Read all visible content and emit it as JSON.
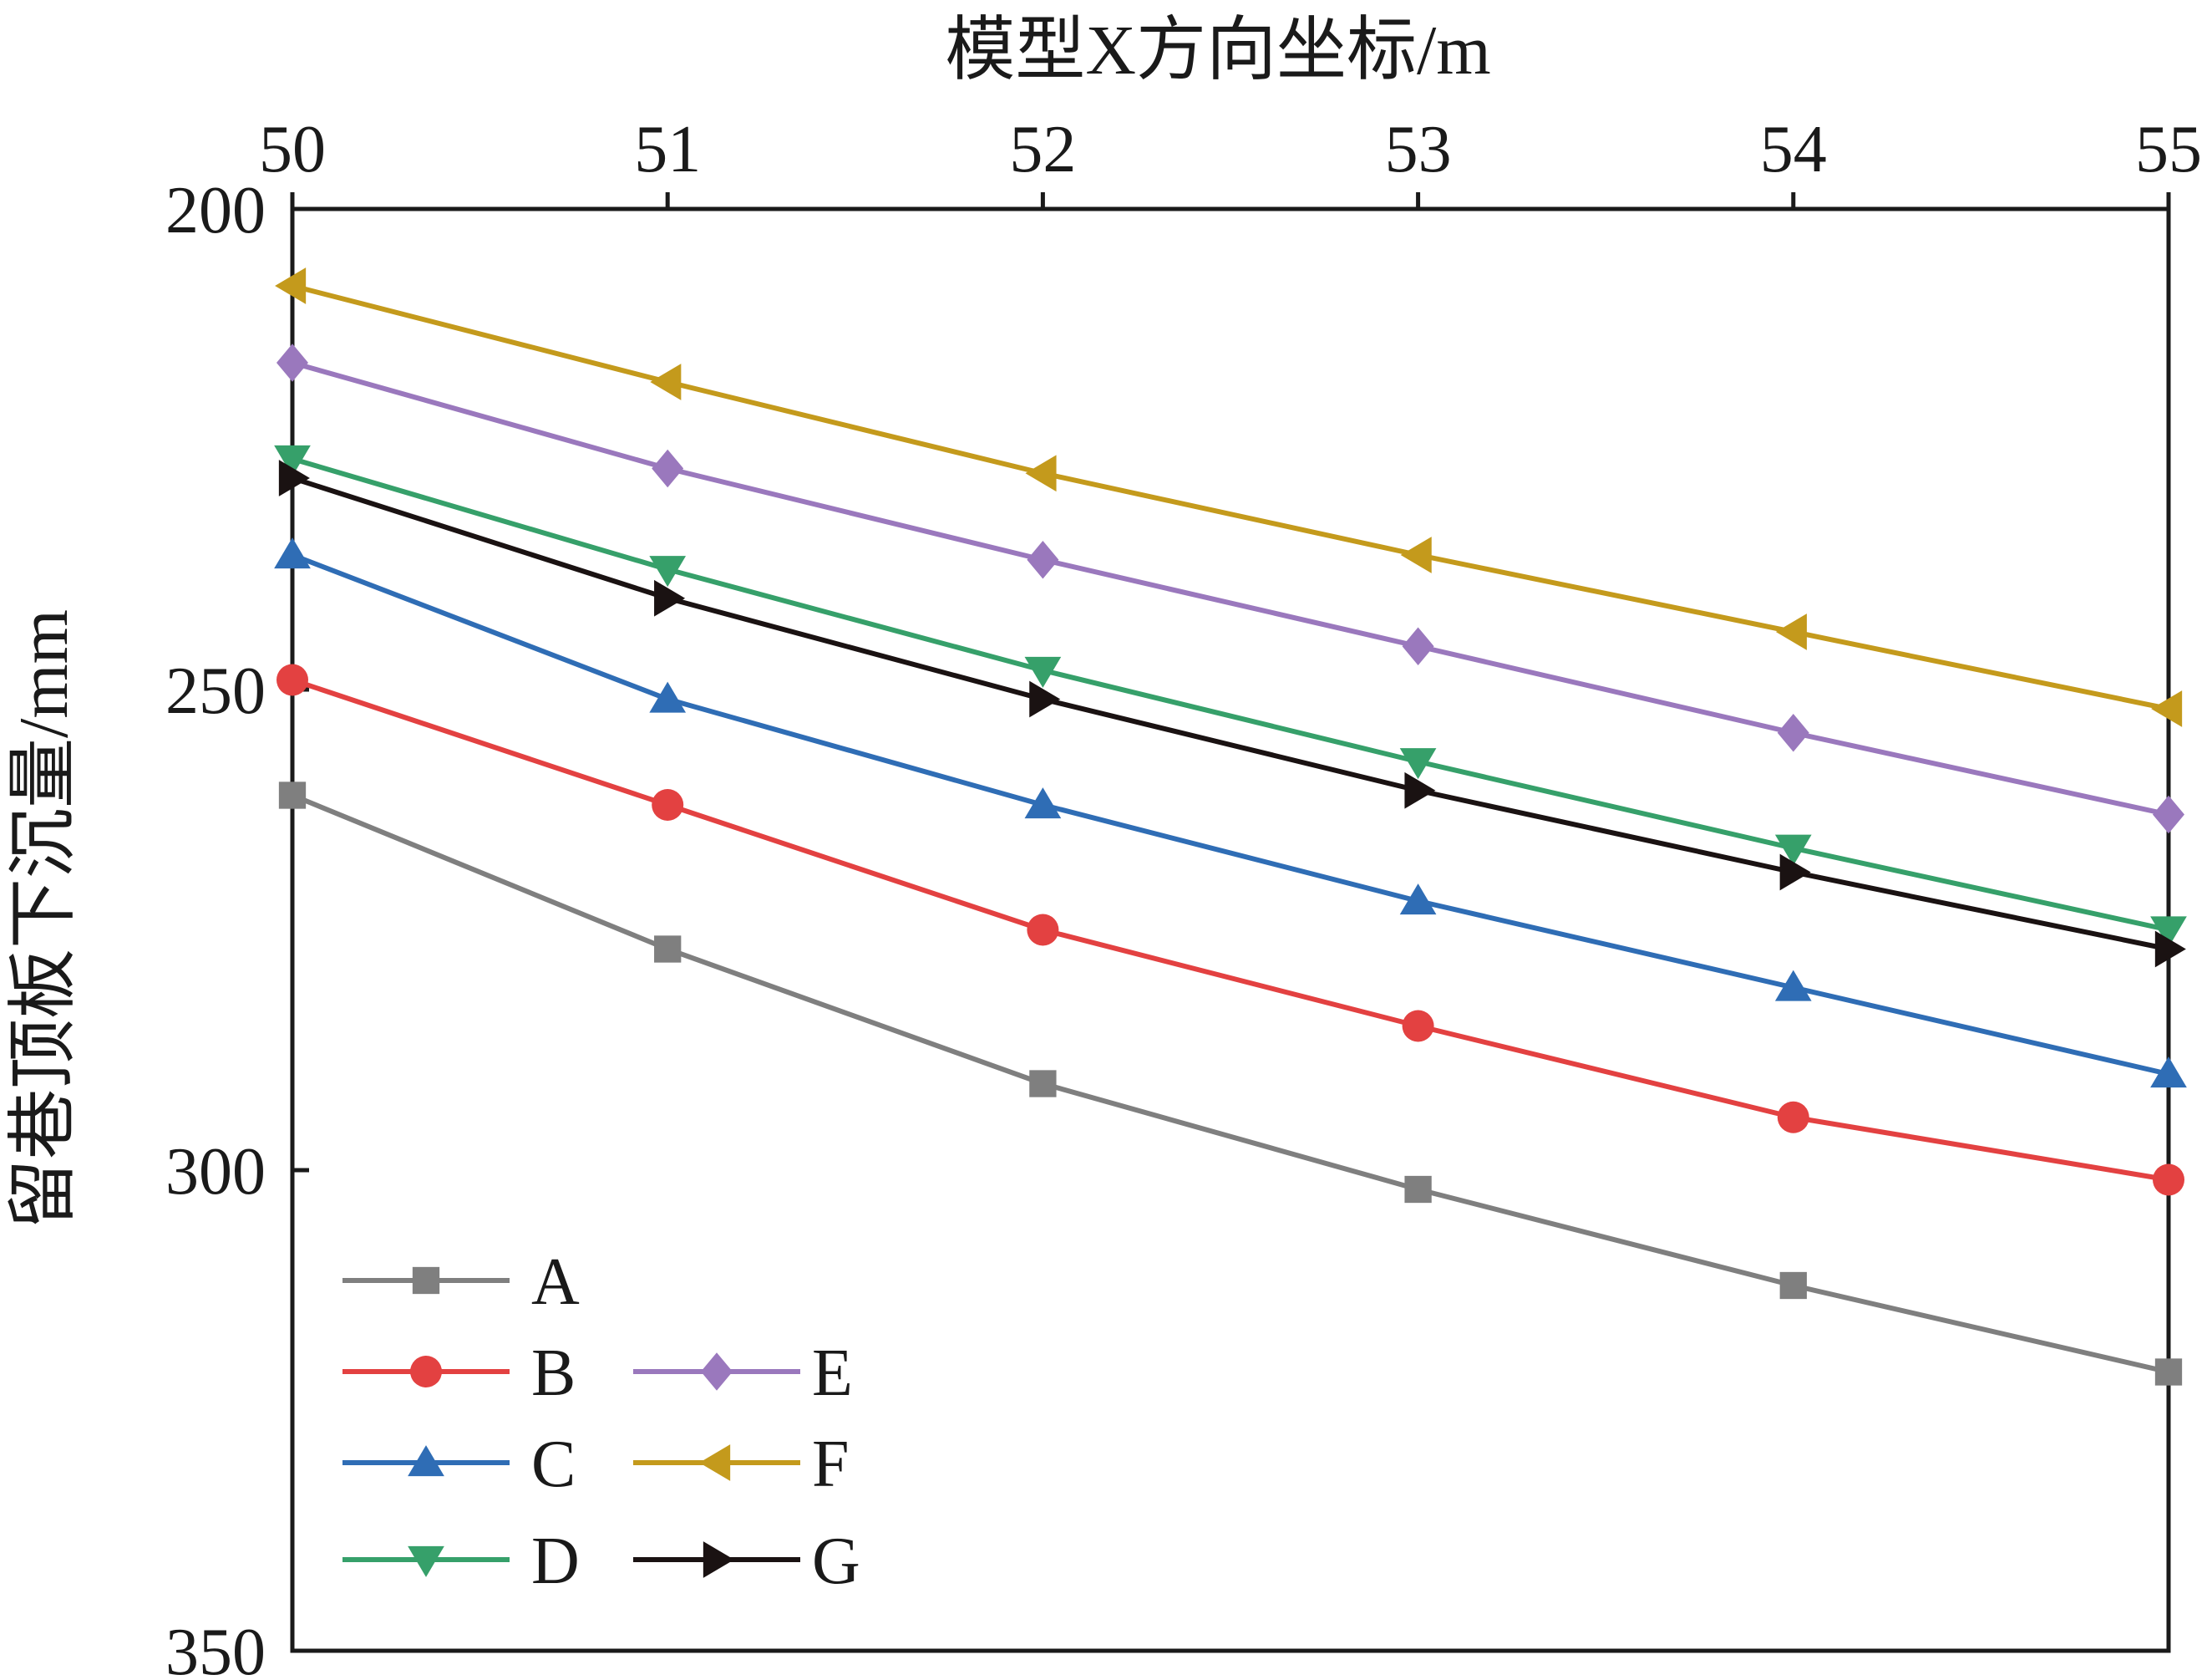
{
  "chart_data": {
    "type": "line",
    "xlabel": "模型X方向坐标/m",
    "ylabel": "留巷顶板下沉量/mm",
    "x_axis_position": "top",
    "y_axis_inverted": true,
    "x": [
      50,
      51,
      52,
      53,
      54,
      55
    ],
    "xlim": [
      50,
      55
    ],
    "ylim": [
      200,
      350
    ],
    "x_ticks": [
      "50",
      "51",
      "52",
      "53",
      "54",
      "55"
    ],
    "y_ticks": [
      "200",
      "250",
      "300",
      "350"
    ],
    "y_tick_values": [
      200,
      250,
      300,
      350
    ],
    "grid": false,
    "legend_position": "bottom-left",
    "series": [
      {
        "name": "A",
        "color": "#7f7f7f",
        "marker": "square",
        "values": [
          261,
          277,
          291,
          302,
          312,
          321
        ]
      },
      {
        "name": "B",
        "color": "#e34141",
        "marker": "circle",
        "values": [
          249,
          262,
          275,
          285,
          294.5,
          301
        ]
      },
      {
        "name": "C",
        "color": "#2f6db5",
        "marker": "triangle-up",
        "values": [
          236,
          251,
          262,
          272,
          281,
          290
        ]
      },
      {
        "name": "D",
        "color": "#36a06a",
        "marker": "triangle-down",
        "values": [
          226,
          237.5,
          248,
          257.5,
          266.5,
          275
        ]
      },
      {
        "name": "E",
        "color": "#9a78bd",
        "marker": "diamond",
        "values": [
          216,
          227,
          236.5,
          245.5,
          254.5,
          263
        ]
      },
      {
        "name": "F",
        "color": "#c49a1c",
        "marker": "triangle-left",
        "values": [
          208,
          218,
          227.5,
          236,
          244,
          252
        ]
      },
      {
        "name": "G",
        "color": "#1a1212",
        "marker": "triangle-right",
        "values": [
          228,
          240.5,
          251,
          260.5,
          269,
          277
        ]
      }
    ]
  }
}
